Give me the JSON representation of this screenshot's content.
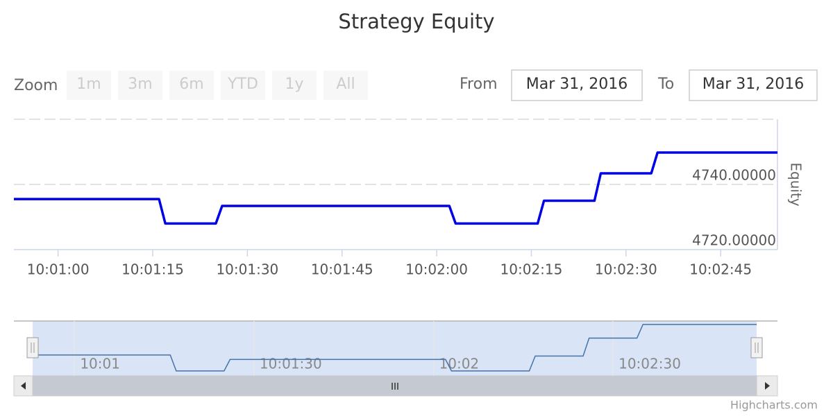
{
  "chart_data": {
    "type": "line",
    "title": "Strategy Equity",
    "zoom_label": "Zoom",
    "zoom_buttons": [
      "1m",
      "3m",
      "6m",
      "YTD",
      "1y",
      "All"
    ],
    "from_label": "From",
    "from_date": "Mar 31, 2016",
    "to_label": "To",
    "to_date": "Mar 31, 2016",
    "y_axis_label": "Equity",
    "x": [
      "10:00:53",
      "10:01:16",
      "10:01:17",
      "10:01:25",
      "10:01:26",
      "10:02:02",
      "10:02:03",
      "10:02:16",
      "10:02:17",
      "10:02:25",
      "10:02:26",
      "10:02:34",
      "10:02:35",
      "10:02:54"
    ],
    "series": [
      {
        "color": "#0000e6",
        "values": [
          4735.5,
          4735.5,
          4728,
          4728,
          4733.4,
          4733.4,
          4728,
          4728,
          4735,
          4735,
          4743.4,
          4743.4,
          4749.8,
          4749.8
        ]
      }
    ],
    "xlim": [
      "10:00:53",
      "10:02:54"
    ],
    "xticks": [
      "10:01:00",
      "10:01:15",
      "10:01:30",
      "10:01:45",
      "10:02:00",
      "10:02:15",
      "10:02:30",
      "10:02:45"
    ],
    "ylim": [
      4720,
      4760
    ],
    "yticks": [
      {
        "value": 4720,
        "label": "4720.00000"
      },
      {
        "value": 4740,
        "label": "4740.00000"
      }
    ],
    "grid": true,
    "navigator": {
      "color": "#4572a7",
      "xticks": [
        {
          "value": "10:01:00",
          "label": "10:01"
        },
        {
          "value": "10:01:30",
          "label": "10:01:30"
        },
        {
          "value": "10:02:00",
          "label": "10:02"
        },
        {
          "value": "10:02:30",
          "label": "10:02:30"
        }
      ]
    },
    "credits": "Highcharts.com"
  }
}
